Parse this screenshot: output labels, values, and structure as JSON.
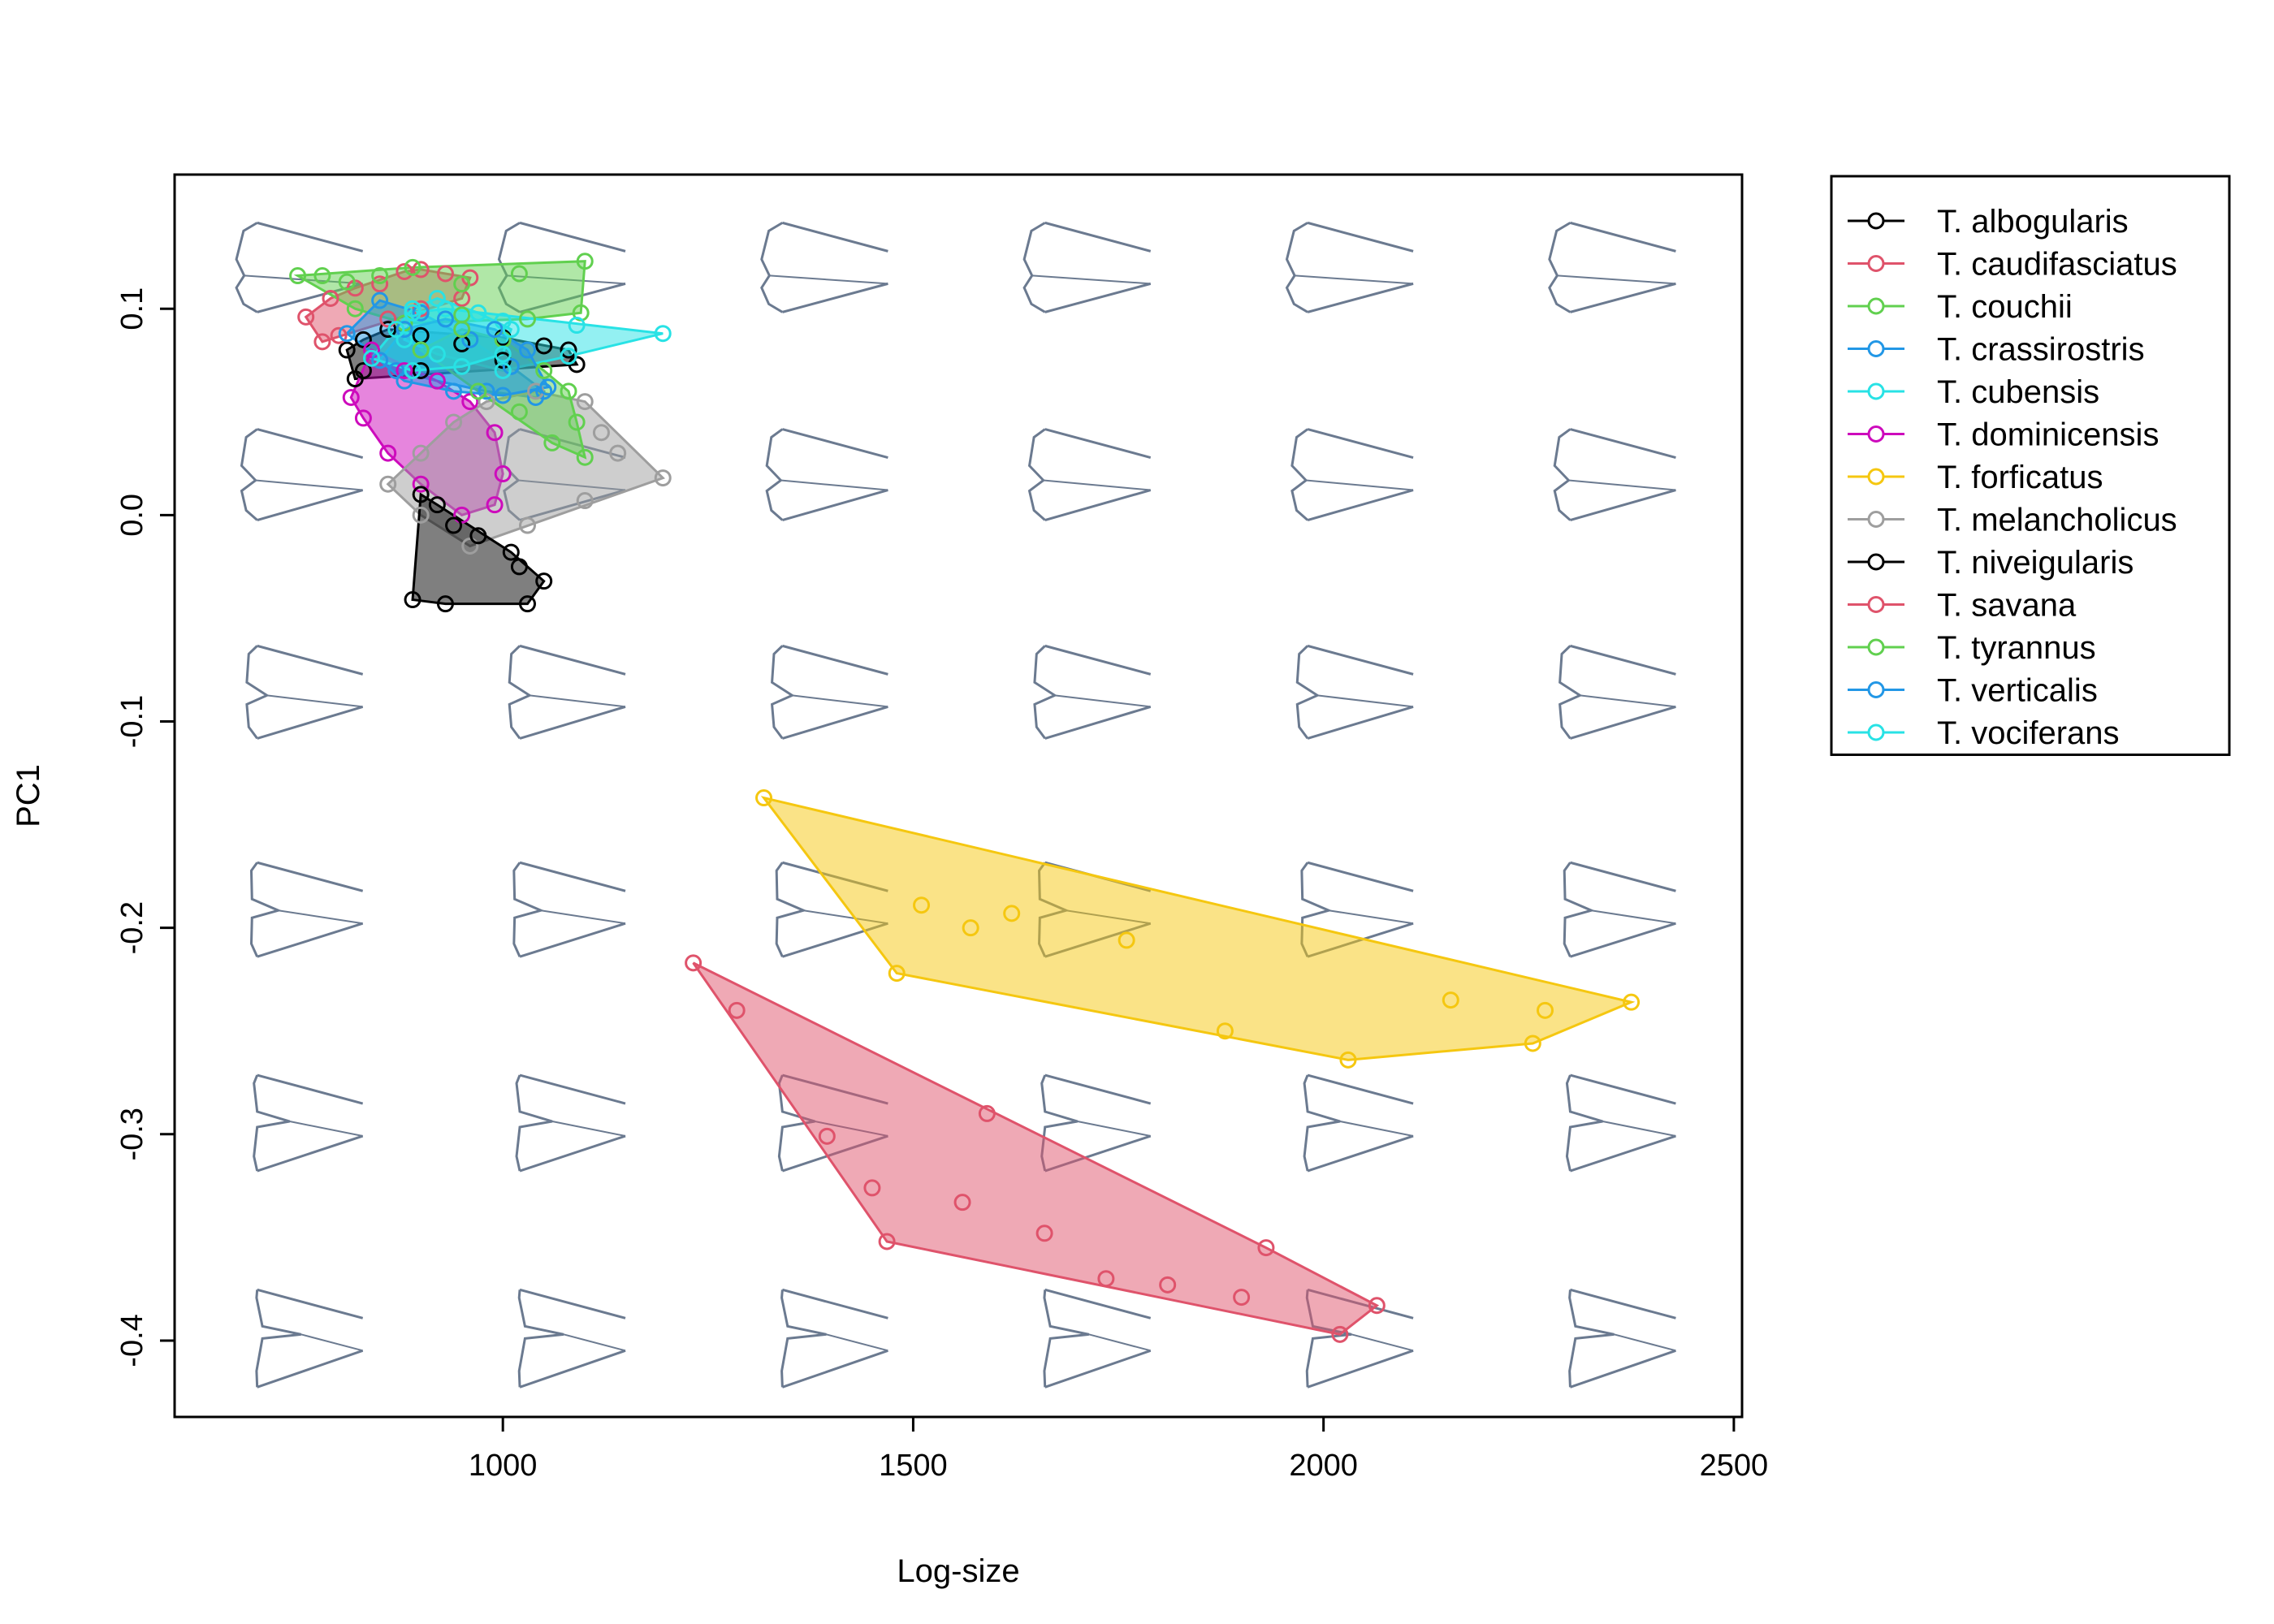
{
  "chart_data": {
    "type": "scatter",
    "xlabel": "Log-size",
    "ylabel": "PC1",
    "xlim": [
      600,
      2510
    ],
    "ylim": [
      -0.437,
      0.165
    ],
    "x_ticks": [
      1000,
      1500,
      2000,
      2500
    ],
    "x_tick_labels": [
      "1000",
      "1500",
      "2000",
      "2500"
    ],
    "y_ticks": [
      -0.4,
      -0.3,
      -0.2,
      -0.1,
      0.0,
      0.1
    ],
    "y_tick_labels": [
      "-0.4",
      "-0.3",
      "-0.2",
      "-0.1",
      "0.0",
      "0.1"
    ],
    "legend_position": "outside-right",
    "background_shapes": {
      "shape_color": "#6b7a90",
      "x_centers": [
        760,
        1080,
        1400,
        1720,
        2040,
        2360
      ],
      "y_rows": [
        0.12,
        0.02,
        -0.085,
        -0.19,
        -0.293,
        -0.397
      ]
    },
    "series": [
      {
        "name": "T. albogularis",
        "color": "#000000",
        "fill": "#000000",
        "points": [
          [
            810,
            0.08
          ],
          [
            830,
            0.085
          ],
          [
            860,
            0.09
          ],
          [
            900,
            0.087
          ],
          [
            950,
            0.083
          ],
          [
            1000,
            0.086
          ],
          [
            1050,
            0.082
          ],
          [
            1080,
            0.08
          ],
          [
            1090,
            0.073
          ],
          [
            1000,
            0.075
          ],
          [
            900,
            0.07
          ],
          [
            830,
            0.07
          ],
          [
            820,
            0.066
          ]
        ]
      },
      {
        "name": "T. caudifasciatus",
        "color": "#df536b",
        "fill": "#df536b",
        "points": [
          [
            760,
            0.096
          ],
          [
            790,
            0.105
          ],
          [
            820,
            0.11
          ],
          [
            850,
            0.112
          ],
          [
            880,
            0.118
          ],
          [
            900,
            0.119
          ],
          [
            930,
            0.117
          ],
          [
            960,
            0.115
          ],
          [
            950,
            0.105
          ],
          [
            900,
            0.1
          ],
          [
            860,
            0.095
          ],
          [
            800,
            0.087
          ],
          [
            780,
            0.084
          ]
        ]
      },
      {
        "name": "T. couchii",
        "color": "#61d04f",
        "fill": "#61d04f",
        "points": [
          [
            750,
            0.116
          ],
          [
            780,
            0.116
          ],
          [
            810,
            0.113
          ],
          [
            850,
            0.116
          ],
          [
            890,
            0.12
          ],
          [
            950,
            0.112
          ],
          [
            1020,
            0.117
          ],
          [
            1100,
            0.123
          ],
          [
            1095,
            0.098
          ],
          [
            1030,
            0.095
          ],
          [
            950,
            0.097
          ],
          [
            880,
            0.093
          ],
          [
            820,
            0.1
          ]
        ]
      },
      {
        "name": "T. crassirostris",
        "color": "#2297e6",
        "fill": "#2297e6",
        "points": [
          [
            810,
            0.088
          ],
          [
            850,
            0.104
          ],
          [
            900,
            0.098
          ],
          [
            960,
            0.085
          ],
          [
            1010,
            0.072
          ],
          [
            1050,
            0.06
          ],
          [
            1040,
            0.057
          ],
          [
            980,
            0.06
          ],
          [
            920,
            0.065
          ],
          [
            870,
            0.07
          ]
        ]
      },
      {
        "name": "T. cubensis",
        "color": "#28e2e5",
        "fill": "#28e2e5",
        "points": [
          [
            890,
            0.098
          ],
          [
            930,
            0.1
          ],
          [
            1000,
            0.094
          ],
          [
            1090,
            0.092
          ],
          [
            1195,
            0.088
          ],
          [
            1080,
            0.077
          ],
          [
            1000,
            0.07
          ],
          [
            920,
            0.078
          ],
          [
            880,
            0.085
          ]
        ]
      },
      {
        "name": "T. dominicensis",
        "color": "#cd0bbc",
        "fill": "#cd0bbc",
        "points": [
          [
            840,
            0.08
          ],
          [
            880,
            0.07
          ],
          [
            920,
            0.065
          ],
          [
            960,
            0.055
          ],
          [
            990,
            0.04
          ],
          [
            1000,
            0.02
          ],
          [
            990,
            0.005
          ],
          [
            950,
            0.0
          ],
          [
            900,
            0.015
          ],
          [
            860,
            0.03
          ],
          [
            830,
            0.047
          ],
          [
            815,
            0.057
          ]
        ]
      },
      {
        "name": "T. forficatus",
        "color": "#f5c710",
        "fill": "#f5c710",
        "points": [
          [
            1318,
            -0.137
          ],
          [
            1480,
            -0.222
          ],
          [
            2030,
            -0.264
          ],
          [
            2255,
            -0.256
          ],
          [
            2375,
            -0.236
          ],
          [
            2270,
            -0.24
          ],
          [
            2155,
            -0.235
          ],
          [
            1880,
            -0.25
          ],
          [
            1760,
            -0.206
          ],
          [
            1620,
            -0.193
          ],
          [
            1510,
            -0.189
          ],
          [
            1570,
            -0.2
          ]
        ]
      },
      {
        "name": "T. melancholicus",
        "color": "#9e9e9e",
        "fill": "#9e9e9e",
        "points": [
          [
            860,
            0.015
          ],
          [
            900,
            0.03
          ],
          [
            940,
            0.045
          ],
          [
            980,
            0.055
          ],
          [
            1040,
            0.06
          ],
          [
            1100,
            0.055
          ],
          [
            1120,
            0.04
          ],
          [
            1140,
            0.03
          ],
          [
            1195,
            0.018
          ],
          [
            1100,
            0.007
          ],
          [
            1030,
            -0.005
          ],
          [
            960,
            -0.015
          ],
          [
            900,
            0.0
          ]
        ]
      },
      {
        "name": "T. niveigularis",
        "color": "#000000",
        "fill": "#000000",
        "points": [
          [
            890,
            -0.041
          ],
          [
            930,
            -0.043
          ],
          [
            1030,
            -0.043
          ],
          [
            1050,
            -0.032
          ],
          [
            1020,
            -0.025
          ],
          [
            1010,
            -0.018
          ],
          [
            970,
            -0.01
          ],
          [
            940,
            -0.005
          ],
          [
            920,
            0.005
          ],
          [
            900,
            0.01
          ]
        ]
      },
      {
        "name": "T. savana",
        "color": "#df536b",
        "fill": "#df536b",
        "points": [
          [
            1232,
            -0.217
          ],
          [
            1285,
            -0.24
          ],
          [
            1395,
            -0.301
          ],
          [
            1450,
            -0.326
          ],
          [
            1468,
            -0.352
          ],
          [
            1560,
            -0.333
          ],
          [
            1660,
            -0.348
          ],
          [
            1735,
            -0.37
          ],
          [
            1810,
            -0.373
          ],
          [
            1900,
            -0.379
          ],
          [
            2020,
            -0.397
          ],
          [
            2065,
            -0.383
          ],
          [
            1930,
            -0.355
          ],
          [
            1590,
            -0.29
          ]
        ]
      },
      {
        "name": "T. tyrannus",
        "color": "#61d04f",
        "fill": "#61d04f",
        "points": [
          [
            900,
            0.08
          ],
          [
            950,
            0.09
          ],
          [
            1000,
            0.085
          ],
          [
            1050,
            0.07
          ],
          [
            1080,
            0.06
          ],
          [
            1090,
            0.045
          ],
          [
            1100,
            0.028
          ],
          [
            1060,
            0.035
          ],
          [
            1020,
            0.05
          ],
          [
            970,
            0.06
          ]
        ]
      },
      {
        "name": "T. verticalis",
        "color": "#2297e6",
        "fill": "#2297e6",
        "points": [
          [
            850,
            0.075
          ],
          [
            880,
            0.09
          ],
          [
            930,
            0.095
          ],
          [
            990,
            0.09
          ],
          [
            1030,
            0.08
          ],
          [
            1055,
            0.062
          ],
          [
            1000,
            0.058
          ],
          [
            940,
            0.06
          ],
          [
            880,
            0.065
          ]
        ]
      },
      {
        "name": "T. vociferans",
        "color": "#28e2e5",
        "fill": "#28e2e5",
        "points": [
          [
            840,
            0.076
          ],
          [
            870,
            0.09
          ],
          [
            890,
            0.1
          ],
          [
            920,
            0.105
          ],
          [
            970,
            0.098
          ],
          [
            1010,
            0.09
          ],
          [
            1000,
            0.078
          ],
          [
            950,
            0.072
          ],
          [
            890,
            0.07
          ]
        ]
      }
    ]
  }
}
